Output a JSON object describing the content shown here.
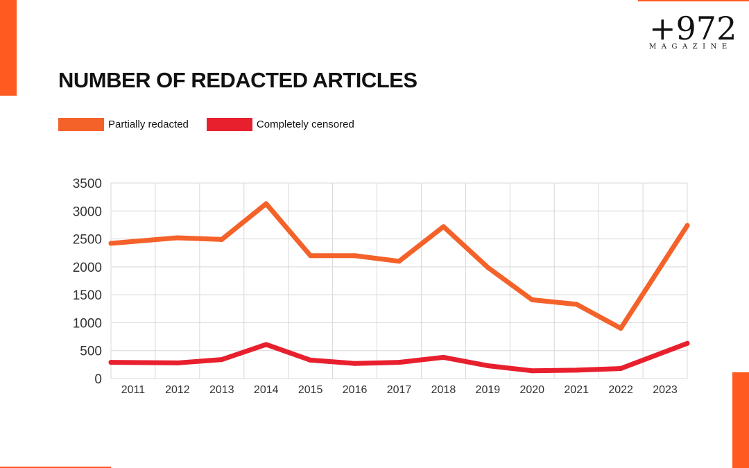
{
  "logo": {
    "mark": "+972",
    "sub": "MAGAZINE"
  },
  "colors": {
    "accent": "#FF5A1F",
    "partial": "#F4622A",
    "complete": "#E8202E",
    "grid": "#D8D8D8"
  },
  "chart_data": {
    "type": "line",
    "title": "NUMBER OF REDACTED ARTICLES",
    "categories": [
      "2011",
      "2012",
      "2013",
      "2014",
      "2015",
      "2016",
      "2017",
      "2018",
      "2019",
      "2020",
      "2021",
      "2022",
      "2023"
    ],
    "series": [
      {
        "name": "Partially redacted",
        "color": "#F4622A",
        "values": [
          2420,
          2520,
          2490,
          3130,
          2200,
          2200,
          2100,
          2720,
          1990,
          1410,
          1330,
          900,
          2740
        ]
      },
      {
        "name": "Completely censored",
        "color": "#E8202E",
        "values": [
          290,
          280,
          340,
          610,
          330,
          270,
          290,
          380,
          230,
          140,
          150,
          180,
          630
        ]
      }
    ],
    "yticks": [
      0,
      500,
      1000,
      1500,
      2000,
      2500,
      3000,
      3500
    ],
    "ylim": [
      0,
      3500
    ],
    "grid": true,
    "legend_position": "top-left"
  }
}
